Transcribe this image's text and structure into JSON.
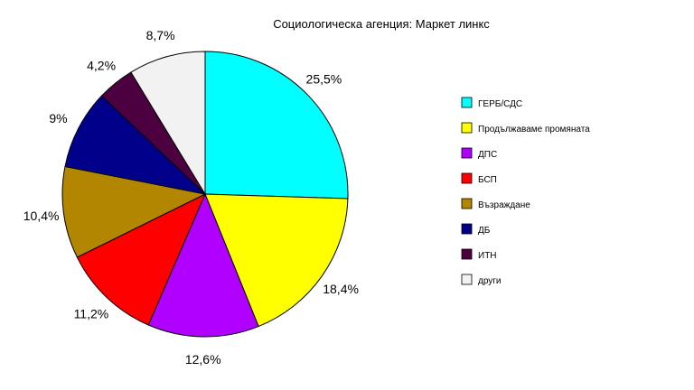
{
  "chart_data": {
    "type": "pie",
    "title": "Социологическа агенция: Маркет линкс",
    "slices": [
      {
        "label": "ГЕРБ/СДС",
        "value": 25.5,
        "value_label": "25,5%",
        "color": "#00ffff"
      },
      {
        "label": "Продължаваме промяната",
        "value": 18.4,
        "value_label": "18,4%",
        "color": "#ffff00"
      },
      {
        "label": "ДПС",
        "value": 12.6,
        "value_label": "12,6%",
        "color": "#b000ff"
      },
      {
        "label": "БСП",
        "value": 11.2,
        "value_label": "11,2%",
        "color": "#ff0000"
      },
      {
        "label": "Възраждане",
        "value": 10.4,
        "value_label": "10,4%",
        "color": "#b38600"
      },
      {
        "label": "ДБ",
        "value": 9,
        "value_label": "9%",
        "color": "#00008b"
      },
      {
        "label": "ИТН",
        "value": 4.2,
        "value_label": "4,2%",
        "color": "#4d0040"
      },
      {
        "label": "други",
        "value": 8.7,
        "value_label": "8,7%",
        "color": "#f2f2f2"
      }
    ],
    "legend_position": "right"
  }
}
